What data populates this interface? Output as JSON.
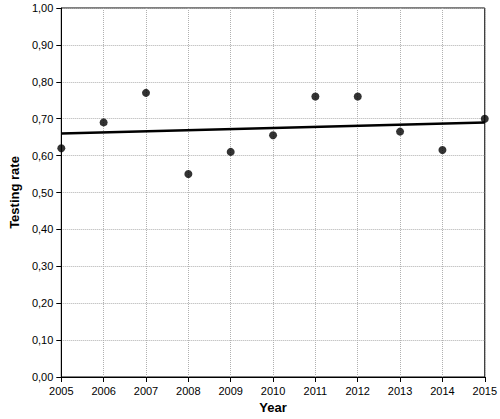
{
  "chart_data": {
    "type": "scatter",
    "x_label": "Year",
    "y_label": "Testing rate",
    "x": [
      2005,
      2006,
      2007,
      2008,
      2009,
      2010,
      2011,
      2012,
      2013,
      2014,
      2015
    ],
    "series": [
      {
        "type": "scatter",
        "color": "#000000",
        "marker": "circle",
        "values": [
          0.62,
          0.69,
          0.77,
          0.55,
          0.61,
          0.655,
          0.76,
          0.76,
          0.665,
          0.615,
          0.7
        ]
      },
      {
        "type": "line",
        "color": "#000000",
        "line_style": "solid",
        "x": [
          2005,
          2015
        ],
        "values": [
          0.66,
          0.69
        ]
      }
    ],
    "xlim": [
      2005,
      2015
    ],
    "xticks": [
      2005,
      2006,
      2007,
      2008,
      2009,
      2010,
      2011,
      2012,
      2013,
      2014,
      2015
    ],
    "ylim": [
      0,
      1
    ],
    "yticks": [
      {
        "value": 0,
        "label": "0,00"
      },
      {
        "value": 0.1,
        "label": "0,10"
      },
      {
        "value": 0.2,
        "label": "0,20"
      },
      {
        "value": 0.3,
        "label": "0,30"
      },
      {
        "value": 0.4,
        "label": "0,40"
      },
      {
        "value": 0.5,
        "label": "0,50"
      },
      {
        "value": 0.6,
        "label": "0,60"
      },
      {
        "value": 0.7,
        "label": "0,70"
      },
      {
        "value": 0.8,
        "label": "0,80"
      },
      {
        "value": 0.9,
        "label": "0,90"
      },
      {
        "value": 1,
        "label": "1,00"
      }
    ],
    "grid": true
  }
}
